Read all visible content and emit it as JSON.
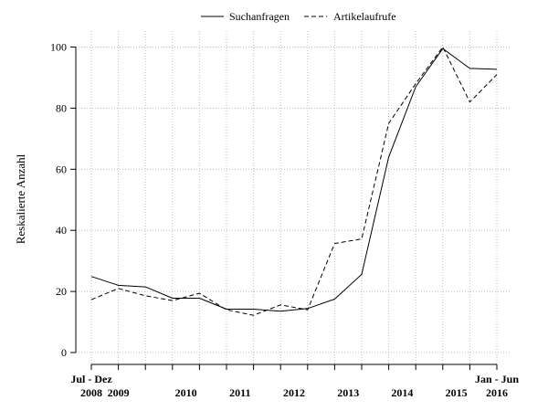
{
  "chart_data": {
    "type": "line",
    "ylabel": "Reskalierte Anzahl",
    "xlabel": "",
    "ylim": [
      0,
      100
    ],
    "yticks": [
      0,
      20,
      40,
      60,
      80,
      100
    ],
    "grid": true,
    "legend_position": "top-center",
    "x": [
      "Jul - Dez 2008",
      "Jan - Jun 2009",
      "Jul - Dez 2009",
      "Jan - Jun 2010",
      "Jul - Dez 2010",
      "Jan - Jun 2011",
      "Jul - Dez 2011",
      "Jan - Jun 2012",
      "Jul - Dez 2012",
      "Jan - Jun 2013",
      "Jul - Dez 2013",
      "Jan - Jun 2014",
      "Jul - Dez 2014",
      "Jan - Jun 2015",
      "Jul - Dez 2015",
      "Jan - Jun 2016"
    ],
    "xtick_labels": [
      {
        "index": 0,
        "lines": [
          "Jul - Dez",
          "2008"
        ]
      },
      {
        "index": 1,
        "lines": [
          "",
          "2009"
        ]
      },
      {
        "index": 3.5,
        "lines": [
          "",
          "2010"
        ]
      },
      {
        "index": 5.5,
        "lines": [
          "",
          "2011"
        ]
      },
      {
        "index": 7.5,
        "lines": [
          "",
          "2012"
        ]
      },
      {
        "index": 9.5,
        "lines": [
          "",
          "2013"
        ]
      },
      {
        "index": 11.5,
        "lines": [
          "",
          "2014"
        ]
      },
      {
        "index": 13.5,
        "lines": [
          "",
          "2015"
        ]
      },
      {
        "index": 15,
        "lines": [
          "Jan - Jun",
          "2016"
        ]
      }
    ],
    "series": [
      {
        "name": "Suchanfragen",
        "style": "solid",
        "values": [
          24.9,
          22,
          21.5,
          17.8,
          17.8,
          14.2,
          14.2,
          13.5,
          14.4,
          17.5,
          25.6,
          64,
          87,
          99.5,
          93,
          92.7
        ]
      },
      {
        "name": "Artikelaufrufe",
        "style": "dashed",
        "values": [
          17.3,
          21,
          18.6,
          17,
          19.4,
          14,
          12.2,
          15.6,
          14,
          35.7,
          37.2,
          75,
          88,
          100,
          82,
          91
        ]
      }
    ]
  }
}
